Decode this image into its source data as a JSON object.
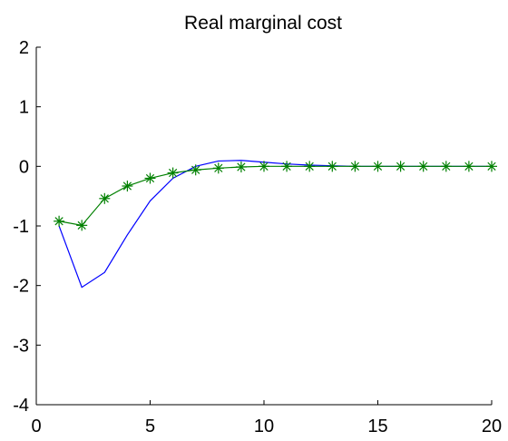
{
  "chart_data": {
    "type": "line",
    "title": "Real marginal cost",
    "xlabel": "",
    "ylabel": "",
    "xlim": [
      0,
      20
    ],
    "ylim": [
      -4,
      2
    ],
    "xticks": [
      "0",
      "5",
      "10",
      "15",
      "20"
    ],
    "yticks": [
      "2",
      "1",
      "0",
      "-1",
      "-2",
      "-3",
      "-4"
    ],
    "grid": false,
    "series": [
      {
        "color": "#0000ff",
        "marker": "none",
        "x": [
          1,
          2,
          3,
          4,
          5,
          6,
          7,
          8,
          9,
          10,
          11,
          12,
          13,
          14,
          15,
          16,
          17,
          18,
          19,
          20
        ],
        "y": [
          -1.0,
          -2.03,
          -1.78,
          -1.15,
          -0.58,
          -0.2,
          0.0,
          0.09,
          0.1,
          0.07,
          0.04,
          0.02,
          0.01,
          0.0,
          0.0,
          0.0,
          0.0,
          0.0,
          0.0,
          0.0
        ]
      },
      {
        "color": "#008000",
        "marker": "asterisk",
        "x": [
          1,
          2,
          3,
          4,
          5,
          6,
          7,
          8,
          9,
          10,
          11,
          12,
          13,
          14,
          15,
          16,
          17,
          18,
          19,
          20
        ],
        "y": [
          -0.92,
          -0.99,
          -0.54,
          -0.33,
          -0.2,
          -0.11,
          -0.06,
          -0.03,
          -0.01,
          0.0,
          0.0,
          0.0,
          0.0,
          0.0,
          0.0,
          0.0,
          0.0,
          0.0,
          0.0,
          0.0
        ]
      }
    ]
  }
}
